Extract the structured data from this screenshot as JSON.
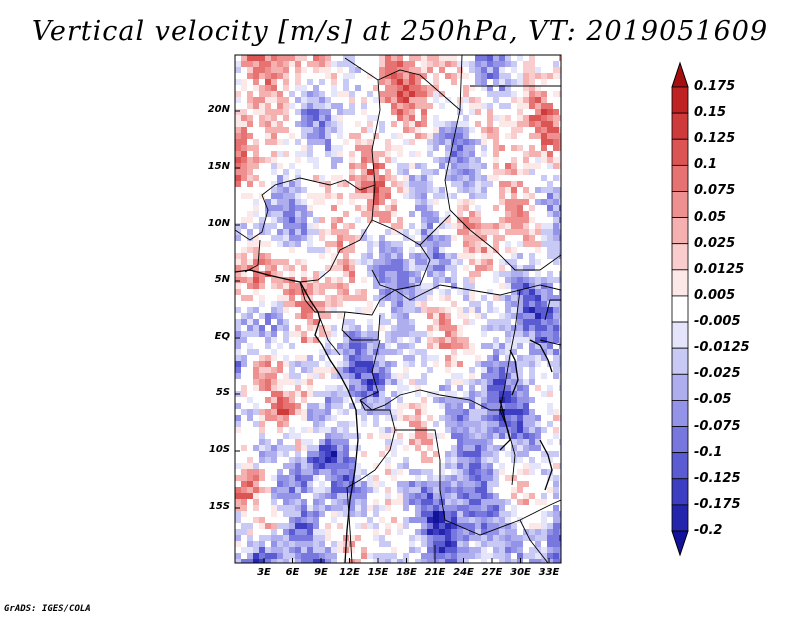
{
  "title": "Vertical velocity [m/s] at 250hPa, VT: 2019051609",
  "credit": "GrADS: IGES/COLA",
  "map": {
    "lat_labels": [
      "20N",
      "15N",
      "10N",
      "5N",
      "EQ",
      "5S",
      "10S",
      "15S"
    ],
    "lon_labels": [
      "3E",
      "6E",
      "9E",
      "12E",
      "15E",
      "18E",
      "21E",
      "24E",
      "27E",
      "30E",
      "33E"
    ],
    "features": [
      "vertical-velocity-field",
      "country-borders",
      "coastlines"
    ]
  },
  "colorbar": {
    "labels": [
      "0.175",
      "0.15",
      "0.125",
      "0.1",
      "0.075",
      "0.05",
      "0.025",
      "0.0125",
      "0.005",
      "-0.005",
      "-0.0125",
      "-0.025",
      "-0.05",
      "-0.075",
      "-0.1",
      "-0.125",
      "-0.175",
      "-0.2"
    ],
    "colors": [
      "#a50f0f",
      "#be2222",
      "#cf3a3a",
      "#dc5555",
      "#e67272",
      "#ee9090",
      "#f5b0b0",
      "#f9cdcd",
      "#fde8e8",
      "#ffffff",
      "#e4e4fb",
      "#c9c9f5",
      "#aeaeef",
      "#9393e8",
      "#7777de",
      "#5b5bd2",
      "#3e3ec2",
      "#2424ac",
      "#12129a"
    ]
  }
}
